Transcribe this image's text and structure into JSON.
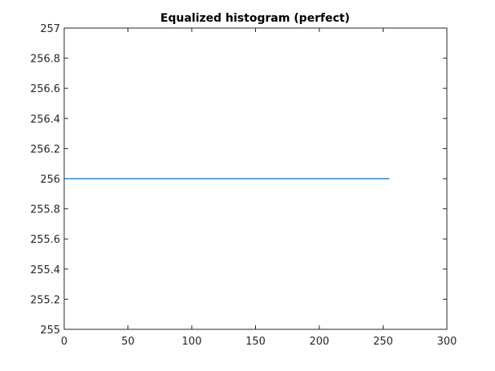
{
  "chart_data": {
    "type": "line",
    "title": "Equalized histogram (perfect)",
    "xlabel": "",
    "ylabel": "",
    "xlim": [
      0,
      300
    ],
    "ylim": [
      255,
      257
    ],
    "xticks": [
      0,
      50,
      100,
      150,
      200,
      250,
      300
    ],
    "yticks": [
      255,
      255.2,
      255.4,
      255.6,
      255.8,
      256,
      256.2,
      256.4,
      256.6,
      256.8,
      257
    ],
    "xtick_labels": [
      "0",
      "50",
      "100",
      "150",
      "200",
      "250",
      "300"
    ],
    "ytick_labels": [
      "255",
      "255.2",
      "255.4",
      "255.6",
      "255.8",
      "256",
      "256.2",
      "256.4",
      "256.6",
      "256.8",
      "257"
    ],
    "grid": false,
    "legend": "none",
    "series": [
      {
        "x": [
          0,
          255
        ],
        "y": [
          256,
          256
        ],
        "color": "#0072BD"
      }
    ]
  }
}
